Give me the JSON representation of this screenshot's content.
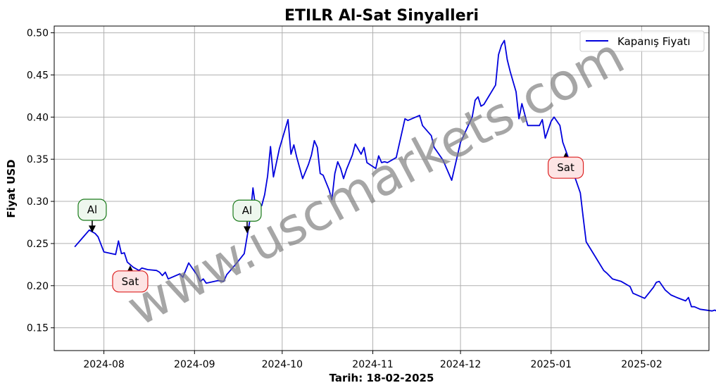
{
  "chart_data": {
    "type": "line",
    "title": "ETILR Al-Sat Sinyalleri",
    "xlabel": "Tarih: 18-02-2025",
    "ylabel": "Fiyat USD",
    "ylim": [
      0.123,
      0.508
    ],
    "yticks": [
      0.15,
      0.2,
      0.25,
      0.3,
      0.35,
      0.4,
      0.45,
      0.5
    ],
    "ytick_labels": [
      "0.15",
      "0.20",
      "0.25",
      "0.30",
      "0.35",
      "0.40",
      "0.45",
      "0.50"
    ],
    "xlim": [
      "2024-07-15",
      "2025-02-24"
    ],
    "xticks": [
      "2024-08-01",
      "2024-09-01",
      "2024-10-01",
      "2024-11-01",
      "2024-12-01",
      "2025-01-01",
      "2025-02-01"
    ],
    "xtick_labels": [
      "2024-08",
      "2024-09",
      "2024-10",
      "2024-11",
      "2024-12",
      "2025-01",
      "2025-02"
    ],
    "grid": true,
    "legend_position": "top-right",
    "series": [
      {
        "name": "Kapanış Fiyatı",
        "color": "#0000dd",
        "points": [
          [
            "2024-07-22",
            0.246
          ],
          [
            "2024-07-25",
            0.258
          ],
          [
            "2024-07-27",
            0.266
          ],
          [
            "2024-07-29",
            0.262
          ],
          [
            "2024-07-30",
            0.258
          ],
          [
            "2024-08-01",
            0.24
          ],
          [
            "2024-08-05",
            0.237
          ],
          [
            "2024-08-06",
            0.253
          ],
          [
            "2024-08-07",
            0.238
          ],
          [
            "2024-08-08",
            0.239
          ],
          [
            "2024-08-09",
            0.228
          ],
          [
            "2024-08-11",
            0.222
          ],
          [
            "2024-08-13",
            0.218
          ],
          [
            "2024-08-14",
            0.221
          ],
          [
            "2024-08-16",
            0.219
          ],
          [
            "2024-08-19",
            0.218
          ],
          [
            "2024-08-20",
            0.216
          ],
          [
            "2024-08-21",
            0.212
          ],
          [
            "2024-08-22",
            0.216
          ],
          [
            "2024-08-23",
            0.208
          ],
          [
            "2024-08-27",
            0.214
          ],
          [
            "2024-08-28",
            0.21
          ],
          [
            "2024-08-30",
            0.227
          ],
          [
            "2024-09-02",
            0.212
          ],
          [
            "2024-09-03",
            0.205
          ],
          [
            "2024-09-04",
            0.208
          ],
          [
            "2024-09-05",
            0.203
          ],
          [
            "2024-09-09",
            0.206
          ],
          [
            "2024-09-11",
            0.205
          ],
          [
            "2024-09-12",
            0.213
          ],
          [
            "2024-09-15",
            0.225
          ],
          [
            "2024-09-18",
            0.238
          ],
          [
            "2024-09-20",
            0.279
          ],
          [
            "2024-09-21",
            0.316
          ],
          [
            "2024-09-22",
            0.29
          ],
          [
            "2024-09-24",
            0.295
          ],
          [
            "2024-09-25",
            0.308
          ],
          [
            "2024-09-26",
            0.33
          ],
          [
            "2024-09-27",
            0.365
          ],
          [
            "2024-09-28",
            0.329
          ],
          [
            "2024-09-30",
            0.362
          ],
          [
            "2024-10-03",
            0.397
          ],
          [
            "2024-10-04",
            0.356
          ],
          [
            "2024-10-05",
            0.367
          ],
          [
            "2024-10-06",
            0.352
          ],
          [
            "2024-10-08",
            0.327
          ],
          [
            "2024-10-10",
            0.344
          ],
          [
            "2024-10-11",
            0.355
          ],
          [
            "2024-10-12",
            0.372
          ],
          [
            "2024-10-13",
            0.364
          ],
          [
            "2024-10-14",
            0.333
          ],
          [
            "2024-10-15",
            0.331
          ],
          [
            "2024-10-17",
            0.314
          ],
          [
            "2024-10-18",
            0.302
          ],
          [
            "2024-10-19",
            0.333
          ],
          [
            "2024-10-20",
            0.347
          ],
          [
            "2024-10-21",
            0.339
          ],
          [
            "2024-10-22",
            0.327
          ],
          [
            "2024-10-23",
            0.338
          ],
          [
            "2024-10-25",
            0.355
          ],
          [
            "2024-10-26",
            0.368
          ],
          [
            "2024-10-28",
            0.356
          ],
          [
            "2024-10-29",
            0.364
          ],
          [
            "2024-10-30",
            0.346
          ],
          [
            "2024-11-02",
            0.339
          ],
          [
            "2024-11-03",
            0.354
          ],
          [
            "2024-11-04",
            0.346
          ],
          [
            "2024-11-05",
            0.347
          ],
          [
            "2024-11-06",
            0.346
          ],
          [
            "2024-11-09",
            0.352
          ],
          [
            "2024-11-12",
            0.398
          ],
          [
            "2024-11-13",
            0.396
          ],
          [
            "2024-11-17",
            0.402
          ],
          [
            "2024-11-18",
            0.39
          ],
          [
            "2024-11-21",
            0.378
          ],
          [
            "2024-11-22",
            0.364
          ],
          [
            "2024-11-25",
            0.349
          ],
          [
            "2024-11-28",
            0.325
          ],
          [
            "2024-12-01",
            0.37
          ],
          [
            "2024-12-05",
            0.4
          ],
          [
            "2024-12-06",
            0.42
          ],
          [
            "2024-12-07",
            0.424
          ],
          [
            "2024-12-08",
            0.413
          ],
          [
            "2024-12-09",
            0.415
          ],
          [
            "2024-12-13",
            0.438
          ],
          [
            "2024-12-14",
            0.474
          ],
          [
            "2024-12-15",
            0.485
          ],
          [
            "2024-12-16",
            0.491
          ],
          [
            "2024-12-17",
            0.468
          ],
          [
            "2024-12-18",
            0.454
          ],
          [
            "2024-12-20",
            0.43
          ],
          [
            "2024-12-21",
            0.398
          ],
          [
            "2024-12-22",
            0.416
          ],
          [
            "2024-12-24",
            0.39
          ],
          [
            "2024-12-28",
            0.39
          ],
          [
            "2024-12-29",
            0.397
          ],
          [
            "2024-12-30",
            0.375
          ],
          [
            "2025-01-01",
            0.395
          ],
          [
            "2025-01-02",
            0.4
          ],
          [
            "2025-01-04",
            0.39
          ],
          [
            "2025-01-05",
            0.37
          ],
          [
            "2025-01-07",
            0.351
          ],
          [
            "2025-01-09",
            0.33
          ],
          [
            "2025-01-11",
            0.31
          ],
          [
            "2025-01-12",
            0.28
          ],
          [
            "2025-01-13",
            0.252
          ],
          [
            "2025-01-16",
            0.235
          ],
          [
            "2025-01-19",
            0.218
          ],
          [
            "2025-01-20",
            0.215
          ],
          [
            "2025-01-22",
            0.208
          ],
          [
            "2025-01-25",
            0.205
          ],
          [
            "2025-01-28",
            0.199
          ],
          [
            "2025-01-29",
            0.191
          ],
          [
            "2025-02-02",
            0.185
          ],
          [
            "2025-02-05",
            0.198
          ],
          [
            "2025-02-06",
            0.204
          ],
          [
            "2025-02-07",
            0.205
          ],
          [
            "2025-02-09",
            0.195
          ],
          [
            "2025-02-11",
            0.189
          ],
          [
            "2025-02-13",
            0.186
          ],
          [
            "2025-02-16",
            0.182
          ],
          [
            "2025-02-17",
            0.186
          ],
          [
            "2025-02-18",
            0.175
          ],
          [
            "2025-02-19",
            0.175
          ],
          [
            "2025-02-21",
            0.172
          ],
          [
            "2025-02-25",
            0.17
          ],
          [
            "2025-02-26",
            0.171
          ],
          [
            "2025-02-27",
            0.169
          ]
        ]
      }
    ],
    "signals": [
      {
        "label": "Al",
        "type": "buy",
        "date": "2024-07-28",
        "price": 0.263,
        "text_price": 0.29
      },
      {
        "label": "Sat",
        "type": "sell",
        "date": "2024-08-10",
        "price": 0.224,
        "text_price": 0.205
      },
      {
        "label": "Al",
        "type": "buy",
        "date": "2024-09-19",
        "price": 0.262,
        "text_price": 0.289
      },
      {
        "label": "Sat",
        "type": "sell",
        "date": "2025-01-06",
        "price": 0.358,
        "text_price": 0.34
      }
    ],
    "annotation_colors": {
      "buy_edge": "#1a7a1a",
      "buy_fill": "#eef7ee",
      "sell_edge": "#dd2222",
      "sell_fill": "#fde4e4"
    }
  },
  "watermark": "www.uscmarkets.com"
}
